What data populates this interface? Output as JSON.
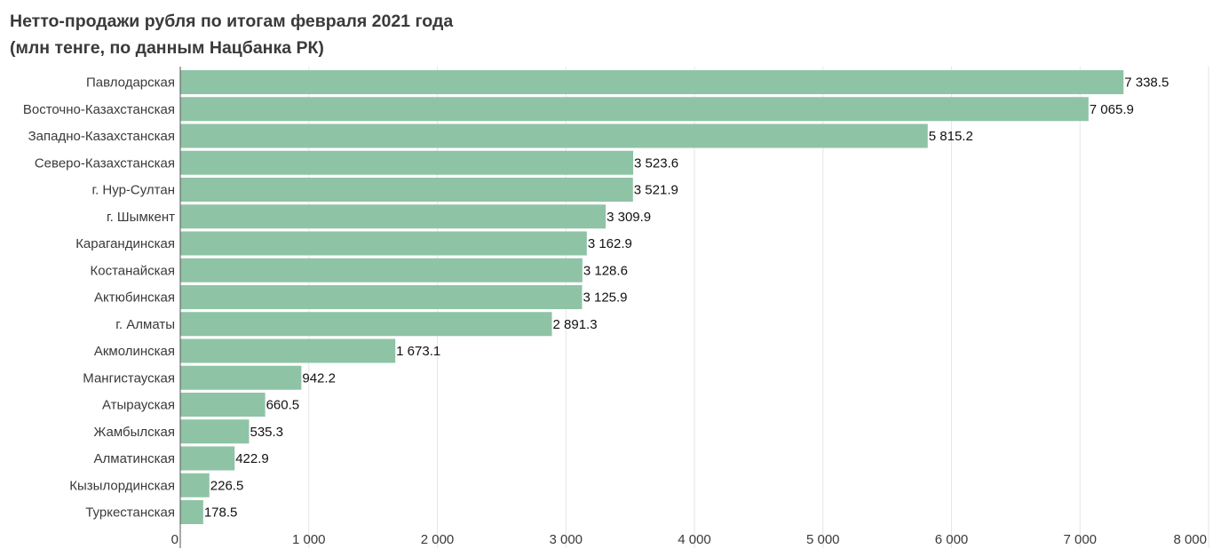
{
  "title": {
    "line1": "Нетто-продажи рубля по итогам февраля 2021 года",
    "line2": "(млн тенге, по данным Нацбанка РК)"
  },
  "colors": {
    "bar": "#8fc3a6",
    "grid": "#e6e6e6",
    "axis": "#555555"
  },
  "chart_data": {
    "type": "bar",
    "orientation": "horizontal",
    "categories": [
      "Павлодарская",
      "Восточно-Казахстанская",
      "Западно-Казахстанская",
      "Северо-Казахстанская",
      "г. Нур-Султан",
      "г. Шымкент",
      "Карагандинская",
      "Костанайская",
      "Актюбинская",
      "г. Алматы",
      "Акмолинская",
      "Мангистауская",
      "Атырауская",
      "Жамбылская",
      "Алматинская",
      "Кызылординская",
      "Туркестанская"
    ],
    "values": [
      7338.5,
      7065.9,
      5815.2,
      3523.6,
      3521.9,
      3309.9,
      3162.9,
      3128.6,
      3125.9,
      2891.3,
      1673.1,
      942.2,
      660.5,
      535.3,
      422.9,
      226.5,
      178.5
    ],
    "value_labels": [
      "7 338.5",
      "7 065.9",
      "5 815.2",
      "3 523.6",
      "3 521.9",
      "3 309.9",
      "3 162.9",
      "3 128.6",
      "3 125.9",
      "2 891.3",
      "1 673.1",
      "942.2",
      "660.5",
      "535.3",
      "422.9",
      "226.5",
      "178.5"
    ],
    "xlim": [
      0,
      8000
    ],
    "xticks": [
      0,
      1000,
      2000,
      3000,
      4000,
      5000,
      6000,
      7000,
      8000
    ],
    "xtick_labels": [
      "0",
      "1 000",
      "2 000",
      "3 000",
      "4 000",
      "5 000",
      "6 000",
      "7 000",
      "8 000"
    ],
    "grid": true,
    "legend": "none"
  }
}
